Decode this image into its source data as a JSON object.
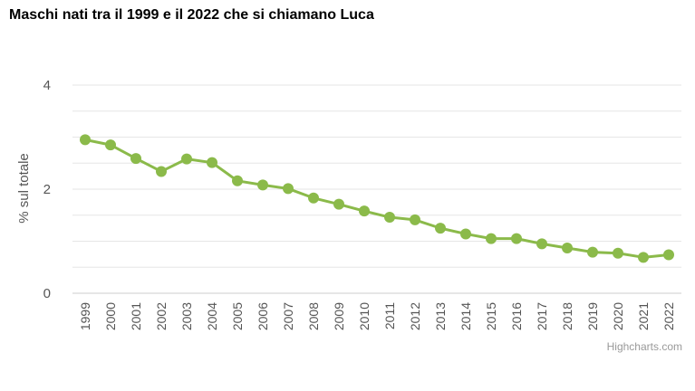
{
  "title": "Maschi nati tra il 1999 e il 2022 che si chiamano Luca",
  "credit": "Highcharts.com",
  "colors": {
    "series": "#8bba4a",
    "grid": "#e6e6e6",
    "axis_text": "#555555"
  },
  "chart_data": {
    "type": "line",
    "title": "Maschi nati tra il 1999 e il 2022 che si chiamano Luca",
    "xlabel": "",
    "ylabel": "% sul totale",
    "ylim": [
      0,
      4
    ],
    "yticks": [
      0,
      2,
      4
    ],
    "minor_grid": true,
    "legend": "none",
    "categories": [
      "1999",
      "2000",
      "2001",
      "2002",
      "2003",
      "2004",
      "2005",
      "2006",
      "2007",
      "2008",
      "2009",
      "2010",
      "2011",
      "2012",
      "2013",
      "2014",
      "2015",
      "2016",
      "2017",
      "2018",
      "2019",
      "2020",
      "2021",
      "2022"
    ],
    "series": [
      {
        "values": [
          2.95,
          2.85,
          2.59,
          2.34,
          2.58,
          2.51,
          2.16,
          2.08,
          2.01,
          1.83,
          1.71,
          1.58,
          1.46,
          1.41,
          1.25,
          1.14,
          1.05,
          1.05,
          0.95,
          0.87,
          0.79,
          0.77,
          0.69,
          0.74
        ]
      }
    ]
  }
}
